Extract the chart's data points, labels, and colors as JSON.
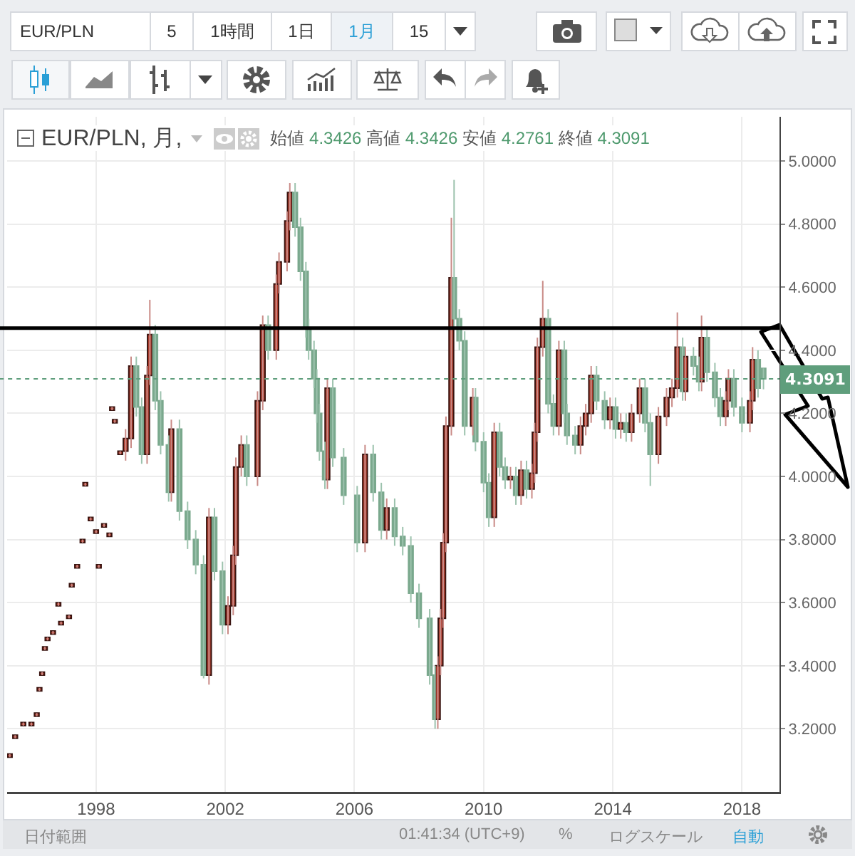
{
  "chart_data": {
    "type": "candlestick",
    "title": "EUR/PLN, 月,",
    "subtitle": "始値 4.3426 高値 4.3426 安値 4.2761 終値 4.3091",
    "annotations": [
      "EUR/PLN",
      "5",
      "1時間",
      "1日",
      "1月",
      "15",
      "日付範囲",
      "01:41:34 (UTC+9)",
      "%",
      "ログスケール",
      "自動"
    ],
    "x": [
      "1995-05",
      "1995-07",
      "1995-10",
      "1996-01",
      "1996-03",
      "1996-04",
      "1996-05",
      "1996-06",
      "1996-07",
      "1996-09",
      "1996-11",
      "1996-12",
      "1997-03",
      "1997-04",
      "1997-06",
      "1997-08",
      "1997-09",
      "1997-11",
      "1998-01",
      "1998-02",
      "1998-04",
      "1998-06",
      "1998-07",
      "1998-08",
      "1998-10",
      "1998-12",
      "1999-02",
      "1999-04",
      "1999-06",
      "1999-08",
      "1999-09",
      "1999-11",
      "2000-01",
      "2000-04",
      "2000-05",
      "2000-08",
      "2000-11",
      "2001-02",
      "2001-05",
      "2001-07",
      "2001-09",
      "2001-12",
      "2002-02",
      "2002-04",
      "2002-05",
      "2002-07",
      "2002-09",
      "2003-01",
      "2003-03",
      "2003-05",
      "2003-08",
      "2003-09",
      "2003-12",
      "2004-01",
      "2004-03",
      "2004-05",
      "2004-07",
      "2004-08",
      "2004-10",
      "2004-11",
      "2004-12",
      "2005-02",
      "2005-03",
      "2005-05",
      "2005-09",
      "2006-02",
      "2006-05",
      "2006-08",
      "2006-11",
      "2007-01",
      "2007-04",
      "2007-07",
      "2007-10",
      "2008-01",
      "2008-05",
      "2008-07",
      "2008-08",
      "2008-09",
      "2008-10",
      "2008-11",
      "2009-01",
      "2009-02",
      "2009-04",
      "2009-06",
      "2009-09",
      "2009-10",
      "2010-01",
      "2010-03",
      "2010-05",
      "2010-07",
      "2010-09",
      "2010-11",
      "2011-01",
      "2011-03",
      "2011-05",
      "2011-07",
      "2011-08",
      "2011-09",
      "2011-11",
      "2012-01",
      "2012-03",
      "2012-05",
      "2012-07",
      "2012-08",
      "2012-11",
      "2013-01",
      "2013-03",
      "2013-05",
      "2013-07",
      "2013-10",
      "2013-12",
      "2014-02",
      "2014-04",
      "2014-06",
      "2014-08",
      "2014-11",
      "2015-01",
      "2015-03",
      "2015-06",
      "2015-09",
      "2015-11",
      "2016-01",
      "2016-03",
      "2016-04",
      "2016-07",
      "2016-09",
      "2016-10",
      "2016-12",
      "2017-03",
      "2017-05",
      "2017-07",
      "2017-08",
      "2017-10",
      "2018-01",
      "2018-04",
      "2018-05",
      "2018-07",
      "2018-09"
    ],
    "ohlc": [
      [
        3.11,
        3.12,
        3.11,
        3.12
      ],
      [
        3.17,
        3.18,
        3.17,
        3.18
      ],
      [
        3.21,
        3.22,
        3.21,
        3.22
      ],
      [
        3.21,
        3.22,
        3.21,
        3.22
      ],
      [
        3.24,
        3.25,
        3.24,
        3.25
      ],
      [
        3.32,
        3.33,
        3.32,
        3.33
      ],
      [
        3.37,
        3.38,
        3.37,
        3.38
      ],
      [
        3.45,
        3.46,
        3.45,
        3.46
      ],
      [
        3.48,
        3.49,
        3.48,
        3.49
      ],
      [
        3.5,
        3.51,
        3.5,
        3.51
      ],
      [
        3.59,
        3.6,
        3.59,
        3.6
      ],
      [
        3.53,
        3.54,
        3.53,
        3.54
      ],
      [
        3.55,
        3.56,
        3.55,
        3.56
      ],
      [
        3.65,
        3.66,
        3.65,
        3.66
      ],
      [
        3.71,
        3.72,
        3.71,
        3.72
      ],
      [
        3.79,
        3.8,
        3.79,
        3.8
      ],
      [
        3.97,
        3.98,
        3.97,
        3.98
      ],
      [
        3.86,
        3.87,
        3.86,
        3.87
      ],
      [
        3.82,
        3.83,
        3.82,
        3.83
      ],
      [
        3.71,
        3.72,
        3.71,
        3.72
      ],
      [
        3.84,
        3.85,
        3.84,
        3.85
      ],
      [
        3.81,
        3.82,
        3.81,
        3.82
      ],
      [
        4.21,
        4.22,
        4.21,
        4.22
      ],
      [
        4.17,
        4.18,
        4.17,
        4.18
      ],
      [
        4.07,
        4.08,
        4.07,
        4.08
      ],
      [
        4.08,
        4.15,
        4.05,
        4.12
      ],
      [
        4.12,
        4.38,
        4.09,
        4.35
      ],
      [
        4.35,
        4.38,
        4.19,
        4.22
      ],
      [
        4.22,
        4.25,
        4.04,
        4.07
      ],
      [
        4.07,
        4.35,
        4.04,
        4.32
      ],
      [
        4.32,
        4.56,
        4.29,
        4.45
      ],
      [
        4.45,
        4.48,
        4.21,
        4.24
      ],
      [
        4.24,
        4.27,
        4.07,
        4.1
      ],
      [
        4.1,
        4.13,
        3.92,
        3.95
      ],
      [
        3.95,
        4.18,
        3.92,
        4.15
      ],
      [
        4.15,
        4.18,
        3.86,
        3.89
      ],
      [
        3.89,
        3.92,
        3.77,
        3.8
      ],
      [
        3.8,
        3.83,
        3.69,
        3.72
      ],
      [
        3.72,
        3.75,
        3.36,
        3.37
      ],
      [
        3.37,
        3.9,
        3.34,
        3.87
      ],
      [
        3.87,
        3.9,
        3.67,
        3.7
      ],
      [
        3.7,
        3.73,
        3.5,
        3.53
      ],
      [
        3.53,
        3.62,
        3.5,
        3.59
      ],
      [
        3.59,
        3.78,
        3.56,
        3.75
      ],
      [
        3.75,
        4.06,
        3.72,
        4.03
      ],
      [
        4.03,
        4.13,
        4.0,
        4.1
      ],
      [
        4.1,
        4.13,
        3.97,
        4.0
      ],
      [
        4.0,
        4.27,
        3.97,
        4.24
      ],
      [
        4.24,
        4.51,
        4.21,
        4.48
      ],
      [
        4.48,
        4.51,
        4.37,
        4.4
      ],
      [
        4.4,
        4.64,
        4.37,
        4.61
      ],
      [
        4.61,
        4.71,
        4.58,
        4.68
      ],
      [
        4.68,
        4.84,
        4.65,
        4.81
      ],
      [
        4.81,
        4.93,
        4.78,
        4.9
      ],
      [
        4.9,
        4.93,
        4.76,
        4.79
      ],
      [
        4.79,
        4.82,
        4.62,
        4.65
      ],
      [
        4.65,
        4.68,
        4.44,
        4.47
      ],
      [
        4.47,
        4.5,
        4.37,
        4.4
      ],
      [
        4.4,
        4.43,
        4.28,
        4.31
      ],
      [
        4.31,
        4.34,
        4.17,
        4.2
      ],
      [
        4.2,
        4.23,
        4.05,
        4.08
      ],
      [
        4.08,
        4.11,
        3.96,
        3.99
      ],
      [
        3.99,
        4.31,
        3.96,
        4.28
      ],
      [
        4.28,
        4.31,
        4.03,
        4.06
      ],
      [
        4.06,
        4.09,
        3.91,
        3.94
      ],
      [
        3.94,
        3.97,
        3.76,
        3.79
      ],
      [
        3.79,
        4.1,
        3.76,
        4.07
      ],
      [
        4.07,
        4.1,
        3.92,
        3.95
      ],
      [
        3.95,
        3.98,
        3.8,
        3.83
      ],
      [
        3.83,
        3.93,
        3.8,
        3.9
      ],
      [
        3.9,
        3.93,
        3.78,
        3.81
      ],
      [
        3.81,
        3.84,
        3.75,
        3.78
      ],
      [
        3.78,
        3.81,
        3.6,
        3.63
      ],
      [
        3.63,
        3.66,
        3.52,
        3.55
      ],
      [
        3.55,
        3.58,
        3.34,
        3.37
      ],
      [
        3.37,
        3.4,
        3.2,
        3.23
      ],
      [
        3.23,
        3.43,
        3.2,
        3.4
      ],
      [
        3.4,
        3.58,
        3.37,
        3.55
      ],
      [
        3.55,
        3.82,
        3.52,
        3.79
      ],
      [
        3.79,
        4.19,
        3.76,
        4.16
      ],
      [
        4.16,
        4.82,
        4.13,
        4.63
      ],
      [
        4.63,
        4.94,
        4.47,
        4.5
      ],
      [
        4.5,
        4.53,
        4.4,
        4.43
      ],
      [
        4.43,
        4.46,
        4.13,
        4.16
      ],
      [
        4.16,
        4.28,
        4.13,
        4.25
      ],
      [
        4.25,
        4.28,
        4.08,
        4.11
      ],
      [
        4.11,
        4.14,
        3.95,
        3.98
      ],
      [
        3.98,
        4.01,
        3.84,
        3.87
      ],
      [
        3.87,
        4.17,
        3.84,
        4.14
      ],
      [
        4.14,
        4.17,
        4.0,
        4.03
      ],
      [
        4.03,
        4.06,
        3.96,
        3.99
      ],
      [
        3.99,
        4.03,
        3.96,
        4.0
      ],
      [
        4.0,
        4.03,
        3.91,
        3.94
      ],
      [
        3.94,
        4.05,
        3.91,
        4.02
      ],
      [
        4.02,
        4.05,
        3.93,
        3.96
      ],
      [
        3.96,
        4.04,
        3.93,
        4.01
      ],
      [
        4.01,
        4.17,
        3.98,
        4.14
      ],
      [
        4.14,
        4.44,
        4.11,
        4.41
      ],
      [
        4.41,
        4.62,
        4.38,
        4.5
      ],
      [
        4.5,
        4.53,
        4.2,
        4.23
      ],
      [
        4.23,
        4.26,
        4.13,
        4.16
      ],
      [
        4.16,
        4.43,
        4.13,
        4.4
      ],
      [
        4.4,
        4.43,
        4.17,
        4.2
      ],
      [
        4.2,
        4.23,
        4.1,
        4.13
      ],
      [
        4.13,
        4.16,
        4.07,
        4.1
      ],
      [
        4.1,
        4.19,
        4.07,
        4.16
      ],
      [
        4.16,
        4.23,
        4.13,
        4.2
      ],
      [
        4.2,
        4.35,
        4.17,
        4.32
      ],
      [
        4.32,
        4.35,
        4.21,
        4.24
      ],
      [
        4.24,
        4.27,
        4.15,
        4.18
      ],
      [
        4.18,
        4.25,
        4.15,
        4.22
      ],
      [
        4.22,
        4.25,
        4.12,
        4.15
      ],
      [
        4.15,
        4.2,
        4.12,
        4.17
      ],
      [
        4.17,
        4.2,
        4.11,
        4.14
      ],
      [
        4.14,
        4.23,
        4.11,
        4.2
      ],
      [
        4.2,
        4.31,
        4.17,
        4.28
      ],
      [
        4.28,
        4.31,
        4.14,
        4.17
      ],
      [
        4.17,
        4.2,
        3.97,
        4.07
      ],
      [
        4.07,
        4.22,
        4.04,
        4.19
      ],
      [
        4.19,
        4.28,
        4.16,
        4.25
      ],
      [
        4.25,
        4.31,
        4.22,
        4.28
      ],
      [
        4.28,
        4.52,
        4.25,
        4.41
      ],
      [
        4.41,
        4.44,
        4.24,
        4.27
      ],
      [
        4.27,
        4.41,
        4.24,
        4.38
      ],
      [
        4.38,
        4.41,
        4.32,
        4.35
      ],
      [
        4.35,
        4.38,
        4.27,
        4.3
      ],
      [
        4.3,
        4.51,
        4.27,
        4.44
      ],
      [
        4.44,
        4.47,
        4.3,
        4.33
      ],
      [
        4.33,
        4.36,
        4.22,
        4.25
      ],
      [
        4.25,
        4.28,
        4.16,
        4.19
      ],
      [
        4.19,
        4.27,
        4.16,
        4.24
      ],
      [
        4.24,
        4.34,
        4.21,
        4.31
      ],
      [
        4.31,
        4.34,
        4.19,
        4.22
      ],
      [
        4.22,
        4.25,
        4.14,
        4.17
      ],
      [
        4.17,
        4.27,
        4.14,
        4.24
      ],
      [
        4.24,
        4.41,
        4.21,
        4.37
      ],
      [
        4.37,
        4.4,
        4.25,
        4.28
      ],
      [
        4.3426,
        4.3426,
        4.2761,
        4.3091
      ]
    ],
    "xlim": [
      "1995-04",
      "2019-03"
    ],
    "xticks": [
      "1998",
      "2002",
      "2006",
      "2010",
      "2014",
      "2018"
    ],
    "ylim": [
      3.0,
      5.14
    ],
    "yticks": [
      {
        "value": 3.2,
        "label": "3.2000"
      },
      {
        "value": 3.4,
        "label": "3.4000"
      },
      {
        "value": 3.6,
        "label": "3.6000"
      },
      {
        "value": 3.8,
        "label": "3.8000"
      },
      {
        "value": 4.0,
        "label": "4.0000"
      },
      {
        "value": 4.2,
        "label": "4.2000"
      },
      {
        "value": 4.4,
        "label": "4.4000"
      },
      {
        "value": 4.6,
        "label": "4.6000"
      },
      {
        "value": 4.8,
        "label": "4.8000"
      },
      {
        "value": 5.0,
        "label": "5.0000"
      }
    ],
    "grid": true,
    "ref_lines": [
      {
        "axis": "y",
        "value": 4.47,
        "color": "#000000",
        "line_style": "solid"
      },
      {
        "axis": "y",
        "value": 4.3091,
        "label": "4.3091",
        "color": "#5f9e7c",
        "line_style": "dotted"
      }
    ]
  }
}
